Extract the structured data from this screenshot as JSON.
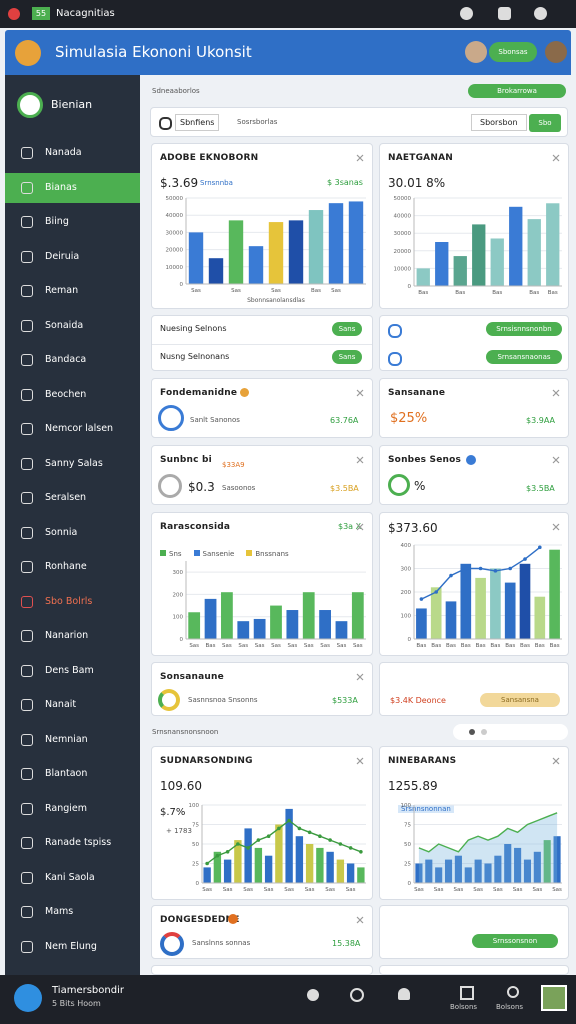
{
  "status_bar": {
    "app": "Nacagnitias",
    "badge": "55"
  },
  "header": {
    "title": "Simulasia Ekononi Ukonsit",
    "button": "Sbonsas"
  },
  "sidebar": {
    "brand": "Bienian",
    "active": 1,
    "highlight": 13,
    "items": [
      "Nanada",
      "Bianas",
      "Biing",
      "Deiruia",
      "Reman",
      "Sonaida",
      "Bandaca",
      "Beochen",
      "Nemcor lalsen",
      "Sanny Salas",
      "Seralsen",
      "Sonnia",
      "Ronhane",
      "Sbo Bolrls",
      "Nanarion",
      "Dens Bam",
      "Nanait",
      "Nemnian",
      "Blantaon",
      "Rangiem",
      "Ranade tspiss",
      "Kani Saola",
      "Mams",
      "Nem Elung"
    ]
  },
  "toolbar": {
    "breadcrumb": "Sdneaaborlos",
    "top_button": "Brokarrowa",
    "filter_1": "Sbnfiens",
    "filter_2": "Sosrsborlas",
    "search_button": "Sborsbon",
    "go_button": "Sbo"
  },
  "cards": {
    "c1": {
      "title": "ADOBE EKNOBORN",
      "value": "$.3.69",
      "tag": "Srnsnnba",
      "delta": "$ 3sanas"
    },
    "c2": {
      "title": "NAETGANAN",
      "value": "30.01 8%"
    },
    "r1": {
      "label": "Nuesing Selnons",
      "button": "Sans",
      "right_button": "Srnsisnnsnonbn"
    },
    "r2": {
      "label": "Nusng Selnonans",
      "button": "Sans",
      "right_button": "Srnsansnaonas"
    },
    "c3": {
      "title": "Fondemanidne",
      "caption": "Sanlt Sanonos",
      "value": "63.76A"
    },
    "c4": {
      "title": "Sansanane",
      "value": "$25%",
      "side": "$3.9AA"
    },
    "c5": {
      "title": "Sunbnc bi",
      "tag": "$33A9",
      "value": "$0.3",
      "caption": "Sasoonos",
      "side": "$3.5BA"
    },
    "c6": {
      "title": "Sonbes Senos",
      "value": "%",
      "side": "$3.5BA"
    },
    "c7": {
      "title": "Rarasconsida",
      "side": "$3a X"
    },
    "c8": {
      "title": "$373.60"
    },
    "c9": {
      "title": "Sonsanaune",
      "caption": "Sasnnsnoa Snsonns",
      "value": "$533A"
    },
    "c10": {
      "label": "$3.4K Deonce",
      "button": "Sansansna"
    },
    "section": "Srnsnansnonsnoon",
    "c11": {
      "title": "SUDNARSONDING",
      "value": "109.60",
      "sub1": "$.7%",
      "sub2": "+ 1783"
    },
    "c12": {
      "title": "NINEBARANS",
      "value": "1255.89",
      "tag": "Srsnnsnonnan"
    },
    "c13": {
      "title": "DONGESDEDNE",
      "caption": "Sanslnns sonnas",
      "value": "15.38A"
    },
    "c14": {
      "button": "Srnssonsnon"
    }
  },
  "charts": [
    {
      "type": "bar",
      "xlabel": "Sbonnsanolansdlas",
      "ylim": [
        0,
        50000
      ],
      "yticks": [
        0,
        10000,
        20000,
        30000,
        40000,
        50000
      ],
      "categories": [
        "Sas",
        null,
        "Sas",
        null,
        "Sas",
        null,
        "Bas",
        "Sas",
        null
      ],
      "values": [
        30000,
        15000,
        37000,
        22000,
        36000,
        37000,
        43000,
        47000,
        48000
      ],
      "colors": [
        "#3a7bd5",
        "#1f4fa8",
        "#58b85c",
        "#3a7bd5",
        "#e6c43a",
        "#1f4fa8",
        "#7fc4c0",
        "#3a7bd5",
        "#3a7bd5"
      ]
    },
    {
      "type": "bar",
      "ylim": [
        0,
        50000
      ],
      "yticks": [
        0,
        10000,
        20000,
        30000,
        40000,
        50000
      ],
      "categories": [
        "Bas",
        null,
        "Bas",
        null,
        "Bas",
        null,
        "Bas",
        "Bas"
      ],
      "values": [
        10000,
        25000,
        17000,
        35000,
        27000,
        45000,
        38000,
        47000
      ],
      "colors": [
        "#8cc9c4",
        "#3a7bd5",
        "#5aa58f",
        "#4a9a80",
        "#8cc9c4",
        "#3a7bd5",
        "#8cc9c4",
        "#8cc9c4"
      ]
    },
    {
      "type": "bar",
      "ylim": [
        0,
        350
      ],
      "yticks": [
        0,
        100,
        200,
        300
      ],
      "legend": [
        {
          "label": "Sns",
          "color": "#4caf50"
        },
        {
          "label": "Sansenie",
          "color": "#3a7bd5"
        },
        {
          "label": "Bnssnans",
          "color": "#e6c43a"
        }
      ],
      "categories": [
        "Sas",
        "Bas",
        "Sas",
        "Sas",
        "Sas",
        "Sas",
        "Sas",
        "Sas",
        "Sas",
        "Sas",
        "Sas"
      ],
      "values": [
        120,
        180,
        210,
        80,
        90,
        150,
        130,
        210,
        130,
        80,
        210
      ],
      "colors": [
        "#58b85c",
        "#2f6fc6",
        "#58b85c",
        "#2f6fc6",
        "#2f6fc6",
        "#58b85c",
        "#2f6fc6",
        "#58b85c",
        "#2f6fc6",
        "#2f6fc6",
        "#58b85c"
      ]
    },
    {
      "type": "combo",
      "ylim": [
        0,
        400
      ],
      "yticks": [
        0,
        100,
        200,
        300,
        400
      ],
      "categories": [
        "Bas",
        "Bas",
        "Bas",
        "Bas",
        "Bas",
        "Bas",
        "Bas",
        "Bas",
        "Bas",
        "Bas"
      ],
      "values": [
        130,
        220,
        160,
        320,
        260,
        300,
        240,
        320,
        180,
        380
      ],
      "colors": [
        "#2f6fc6",
        "#b9d98a",
        "#2f6fc6",
        "#2f6fc6",
        "#b9d98a",
        "#8cc9c4",
        "#2f6fc6",
        "#1f4fa8",
        "#b9d98a",
        "#58b85c"
      ],
      "line": {
        "values": [
          170,
          200,
          270,
          300,
          300,
          290,
          300,
          340,
          390,
          null
        ],
        "color": "#2f6fc6"
      }
    },
    {
      "type": "combo",
      "ylim": [
        0,
        100
      ],
      "yticks": [
        0,
        25,
        50,
        75,
        100
      ],
      "categories": [
        "Sas",
        null,
        "Sas",
        null,
        "Sas",
        null,
        "Sas",
        null,
        "Sas",
        null,
        "Sas",
        null,
        "Sas",
        null,
        "Sas",
        null
      ],
      "values": [
        20,
        40,
        30,
        55,
        70,
        45,
        35,
        75,
        95,
        60,
        50,
        45,
        40,
        30,
        25,
        20
      ],
      "colors": [
        "#2f6fc6",
        "#58b85c",
        "#2f6fc6",
        "#c8c84a",
        "#2f6fc6",
        "#58b85c",
        "#2f6fc6",
        "#c8c84a",
        "#2f6fc6",
        "#2f6fc6",
        "#c8c84a",
        "#58b85c",
        "#2f6fc6",
        "#c8c84a",
        "#2f6fc6",
        "#58b85c"
      ],
      "line": {
        "values": [
          25,
          35,
          40,
          50,
          45,
          55,
          60,
          70,
          80,
          70,
          65,
          60,
          55,
          50,
          45,
          40
        ],
        "color": "#3a9a3e"
      }
    },
    {
      "type": "area",
      "ylim": [
        0,
        100
      ],
      "yticks": [
        0,
        25,
        50,
        75,
        100
      ],
      "categories": [
        "Sas",
        null,
        "Sas",
        null,
        "Sas",
        null,
        "Sas",
        null,
        "Sas",
        null,
        "Sas",
        null,
        "Sas",
        null,
        "Sas"
      ],
      "values": [
        25,
        30,
        20,
        30,
        35,
        20,
        30,
        25,
        35,
        50,
        45,
        30,
        40,
        55,
        60
      ],
      "colors": [
        "#2f6fc6",
        "#2f6fc6",
        "#2f6fc6",
        "#2f6fc6",
        "#2f6fc6",
        "#2f6fc6",
        "#2f6fc6",
        "#2f6fc6",
        "#2f6fc6",
        "#2f6fc6",
        "#2f6fc6",
        "#2f6fc6",
        "#2f6fc6",
        "#58b85c",
        "#2f6fc6"
      ],
      "line": {
        "values": [
          45,
          40,
          50,
          45,
          40,
          55,
          60,
          55,
          60,
          70,
          65,
          75,
          80,
          85,
          90
        ],
        "color": "#4caf50"
      }
    }
  ],
  "footer": {
    "user": "Tiamersbondir",
    "status": "5 Bits Hoom",
    "nav": [
      "Bolsons",
      "Bolsons"
    ]
  }
}
